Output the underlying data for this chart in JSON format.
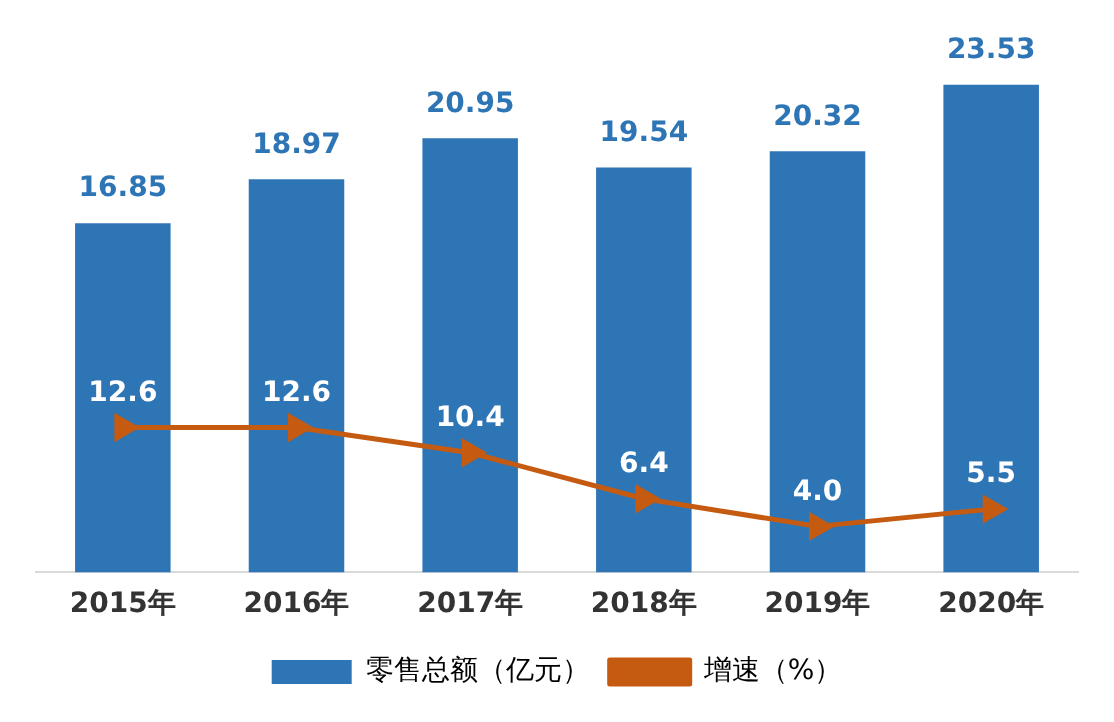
{
  "chart_data": {
    "type": "bar",
    "categories": [
      "2015年",
      "2016年",
      "2017年",
      "2018年",
      "2019年",
      "2020年"
    ],
    "series": [
      {
        "name": "零售总额（亿元）",
        "color": "#2e75b6",
        "values": [
          16.85,
          18.97,
          20.95,
          19.54,
          20.32,
          23.53
        ]
      },
      {
        "name": "增速（%）",
        "type": "line",
        "axis": "y2",
        "color": "#c55a11",
        "values": [
          12.6,
          12.6,
          10.4,
          6.4,
          4.0,
          5.5
        ],
        "value_labels": [
          "12.6",
          "12.6",
          "10.4",
          "6.4",
          "4.0",
          "5.5"
        ],
        "marker": "triangle"
      }
    ],
    "tick_labels": "x",
    "data_labels": true,
    "legend": "bottom",
    "grid": false
  }
}
